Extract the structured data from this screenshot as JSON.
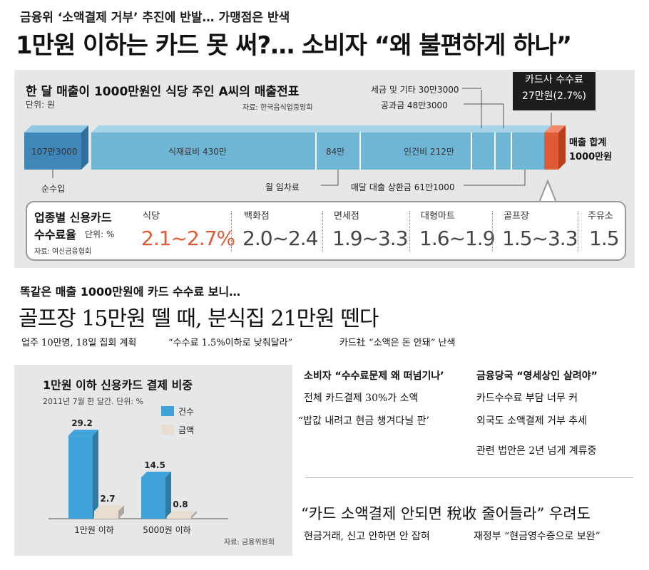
{
  "kicker": "금융위 ‘소액결제 거부’ 추진에 반발… 가맹점은 반색",
  "headline": "1만원 이하는 카드 못 써?… 소비자 “왜 불편하게 하나”",
  "sales_graphic": {
    "title": "한 달 매출이 1000만원인 식당 주인 A씨의 매출전표",
    "unit": "단위: 원",
    "source": "자료: 한국음식업중앙회",
    "net_income": "107만3000",
    "net_income_label": "순수입",
    "food_cost": "식재료비 430만",
    "rent_value": "84만",
    "rent_label": "월 임차료",
    "labor_cost": "인건비 212만",
    "tax_label": "세금 및 기타 30만3000",
    "utility_label": "공과금 48만3000",
    "loan_label": "매달 대출 상환금 61만1000",
    "card_fee_title": "카드사 수수료",
    "card_fee_value": "27만원(2.7%)",
    "total_line1": "매출 합계",
    "total_line2": "1000만원",
    "colors": {
      "bar": "#6fb6d6",
      "net_income": "#3f86b9",
      "card_fee": "#e05a35"
    }
  },
  "rates": {
    "title_line1": "업종별 신용카드",
    "title_line2": "수수료율",
    "unit": "단위: %",
    "source": "자료: 여신금융협회",
    "items": [
      {
        "name": "식당",
        "value": "2.1~2.7%"
      },
      {
        "name": "백화점",
        "value": "2.0~2.4"
      },
      {
        "name": "면세점",
        "value": "1.9~3.3"
      },
      {
        "name": "대형마트",
        "value": "1.6~1.9"
      },
      {
        "name": "골프장",
        "value": "1.5~3.3"
      },
      {
        "name": "주유소",
        "value": "1.5"
      }
    ],
    "highlight_color": "#e05a35"
  },
  "section2": {
    "subhead": "똑같은 매출 1000만원에 카드 수수료 보니…",
    "headline": "골프장 15만원 뗄 때, 분식집 21만원 뗀다",
    "sub1": "업주 10만명, 18일 집회 계획",
    "sub2": "“수수료 1.5%이하로 낮춰달라”",
    "sub3": "카드社 “소액은 돈 안돼” 난색"
  },
  "chart_data": {
    "type": "bar",
    "title": "1만원 이하 신용카드 결제 비중",
    "subtitle": "2011년 7월 한 달간. 단위: %",
    "source": "자료: 금융위원회",
    "categories": [
      "1만원 이하",
      "5000원 이하"
    ],
    "series": [
      {
        "name": "건수",
        "values": [
          29.2,
          14.5
        ],
        "color": "#3fa2d9"
      },
      {
        "name": "금액",
        "values": [
          2.7,
          0.8
        ],
        "color": "#e9ddd1"
      }
    ],
    "ylim": [
      0,
      30
    ],
    "legend": "top-right"
  },
  "columns": {
    "left_head": "소비자 “수수료문제 왜 떠넘기나’",
    "left_line1": "전체 카드결제 30%가 소액",
    "left_line2": "“밥값 내려고 현금 챙겨다닐 판’",
    "right_head": "금융당국 “영세상인 살려야”",
    "right_line1": "카드수수료 부담 너무 커",
    "right_line2": "외국도 소액결제 거부 추세",
    "right_line3": "관련 법안은 2년 넘게 계류중"
  },
  "bottom": {
    "headline": "“카드 소액결제 안되면 稅收 줄어들라” 우려도",
    "line_left": "현금거래, 신고 안하면 안 잡혀",
    "line_right": "재정부 “현금영수증으로 보완”"
  }
}
